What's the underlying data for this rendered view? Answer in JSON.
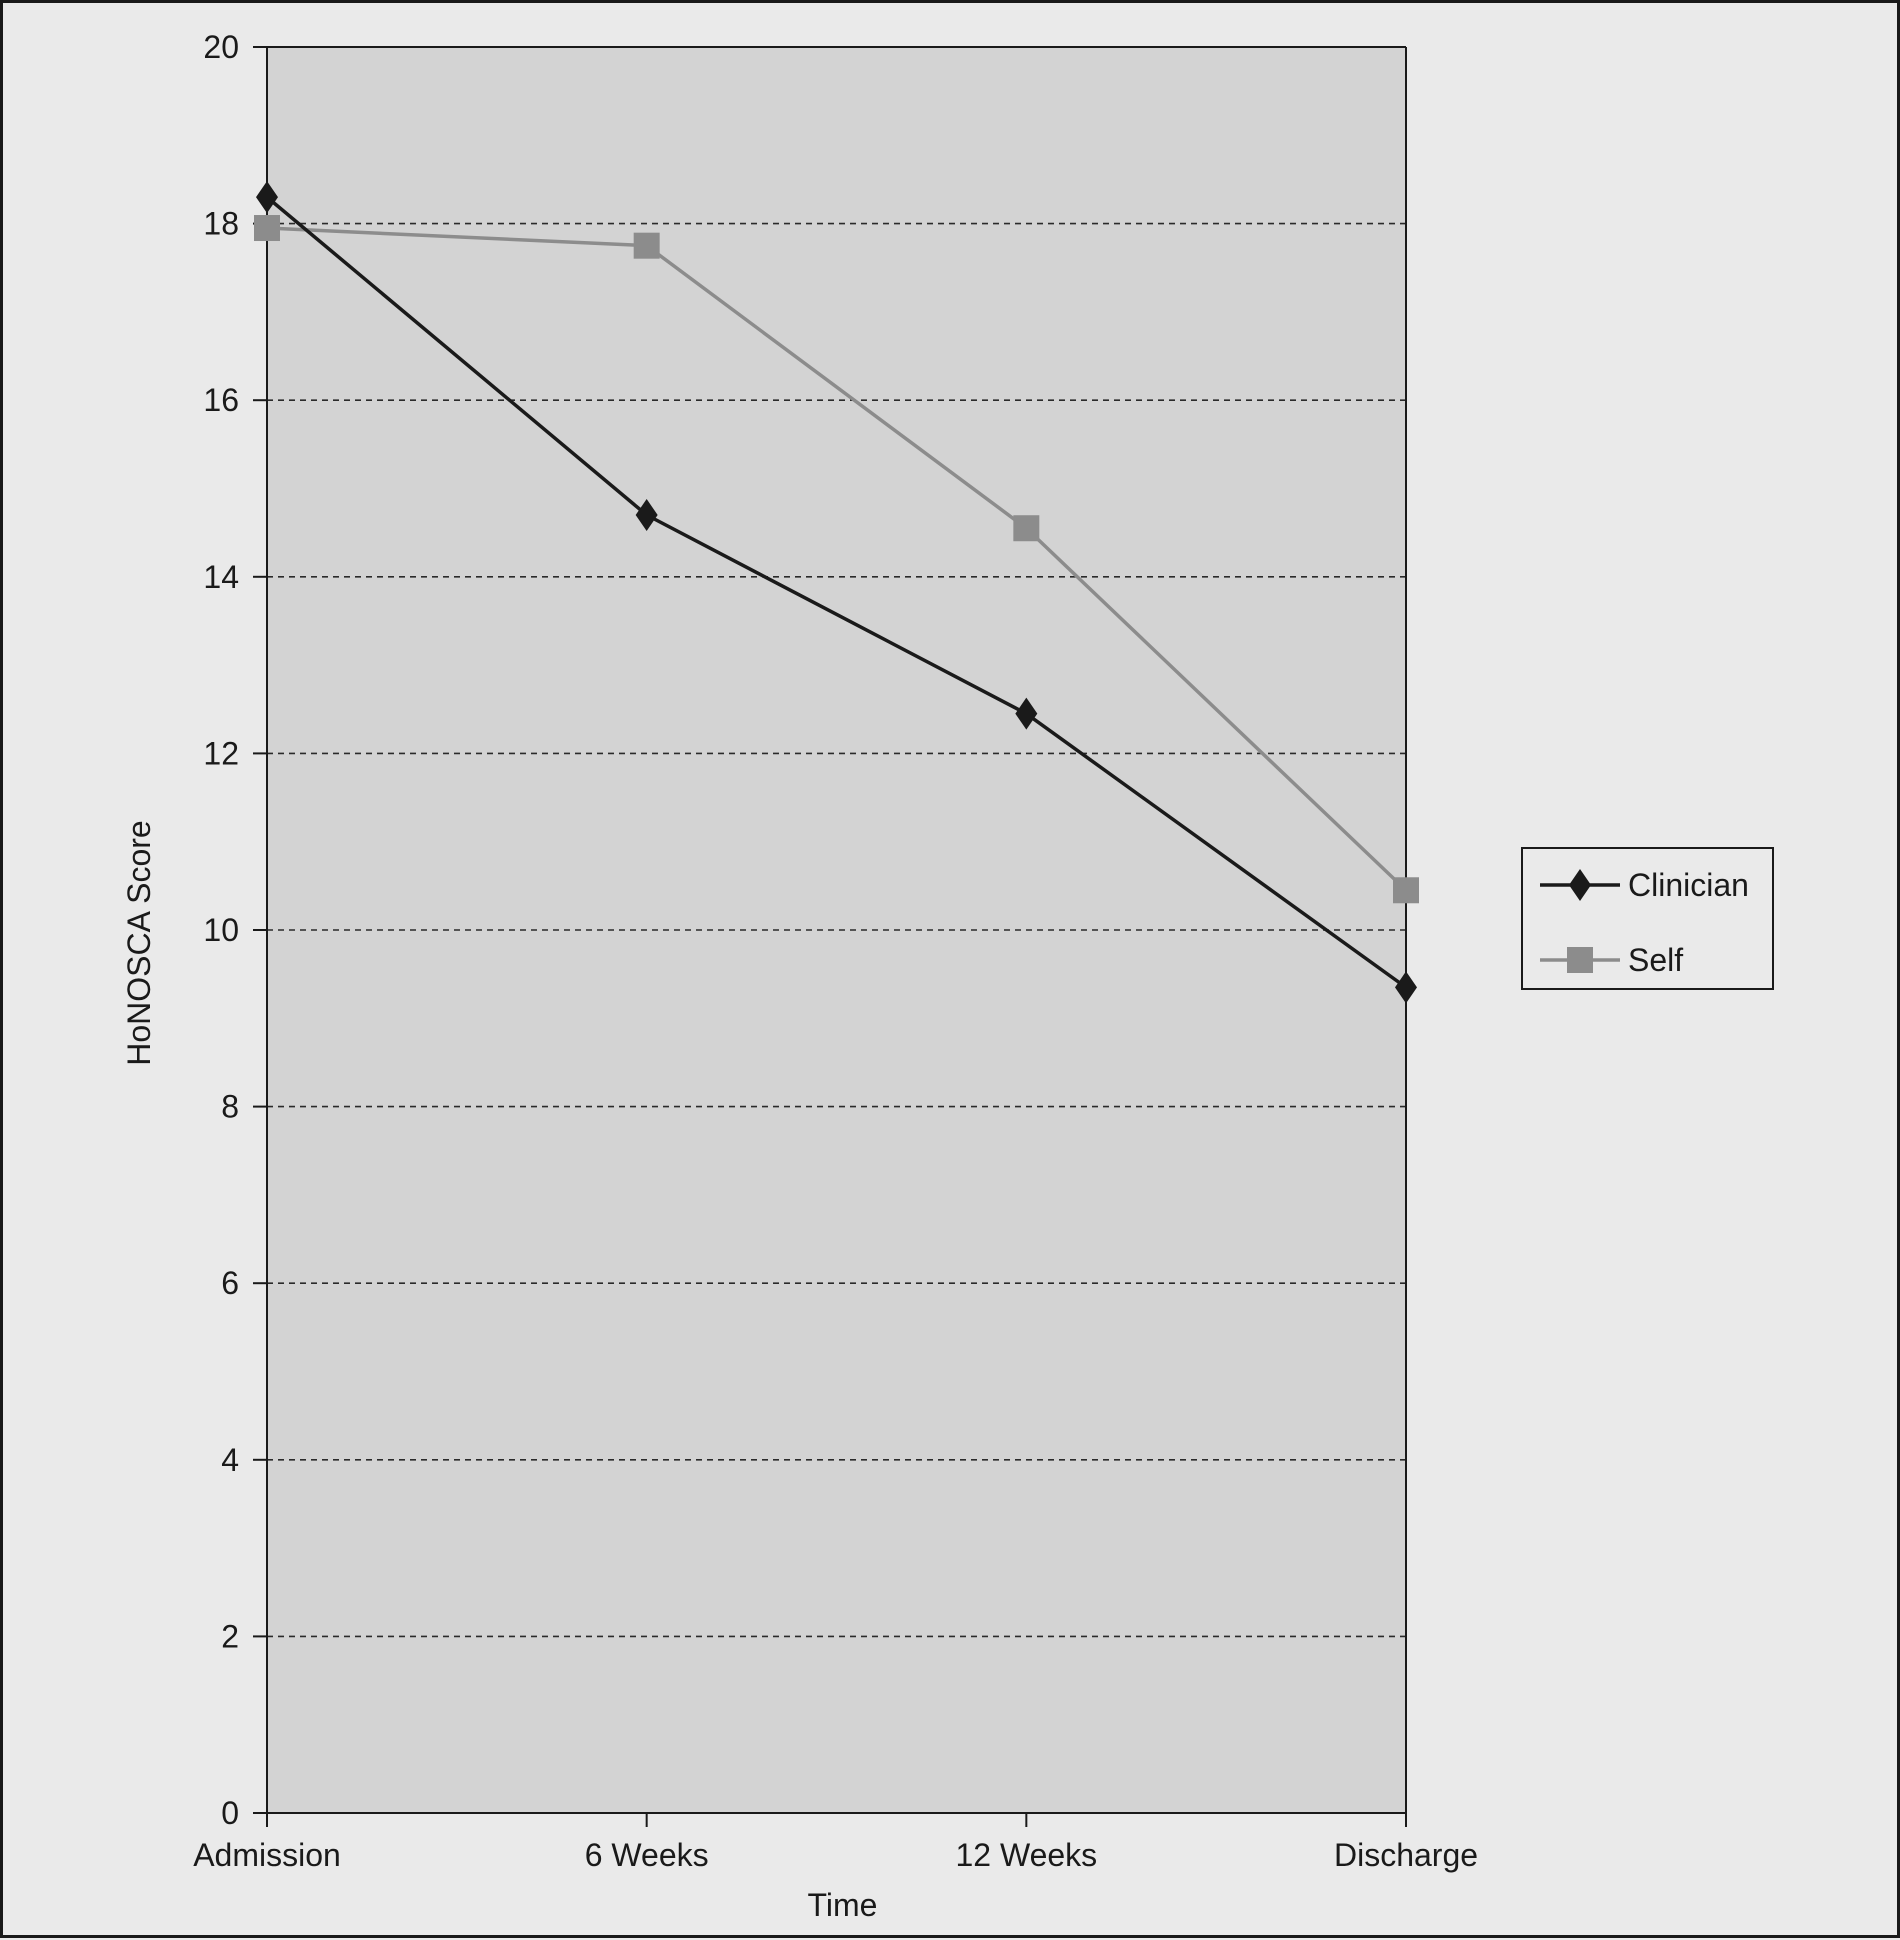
{
  "chart_data": {
    "type": "line",
    "title": "",
    "xlabel": "Time",
    "ylabel": "HoNOSCA Score",
    "categories": [
      "Admission",
      "6 Weeks",
      "12 Weeks",
      "Discharge"
    ],
    "ylim": [
      0,
      20
    ],
    "yticks": [
      "0",
      "2",
      "4",
      "6",
      "8",
      "10",
      "12",
      "14",
      "16",
      "18",
      "20"
    ],
    "grid": "horizontal-dashed",
    "legend_position": "right",
    "series": [
      {
        "name": "Clinician",
        "values": [
          18.3,
          14.7,
          12.45,
          9.35
        ],
        "color": "#1a1a1a",
        "marker": "diamond"
      },
      {
        "name": "Self",
        "values": [
          17.95,
          17.75,
          14.55,
          10.45
        ],
        "color": "#8c8c8c",
        "marker": "square"
      }
    ],
    "plot_background": "#d3d3d3",
    "page_background": "#eaeaea"
  }
}
